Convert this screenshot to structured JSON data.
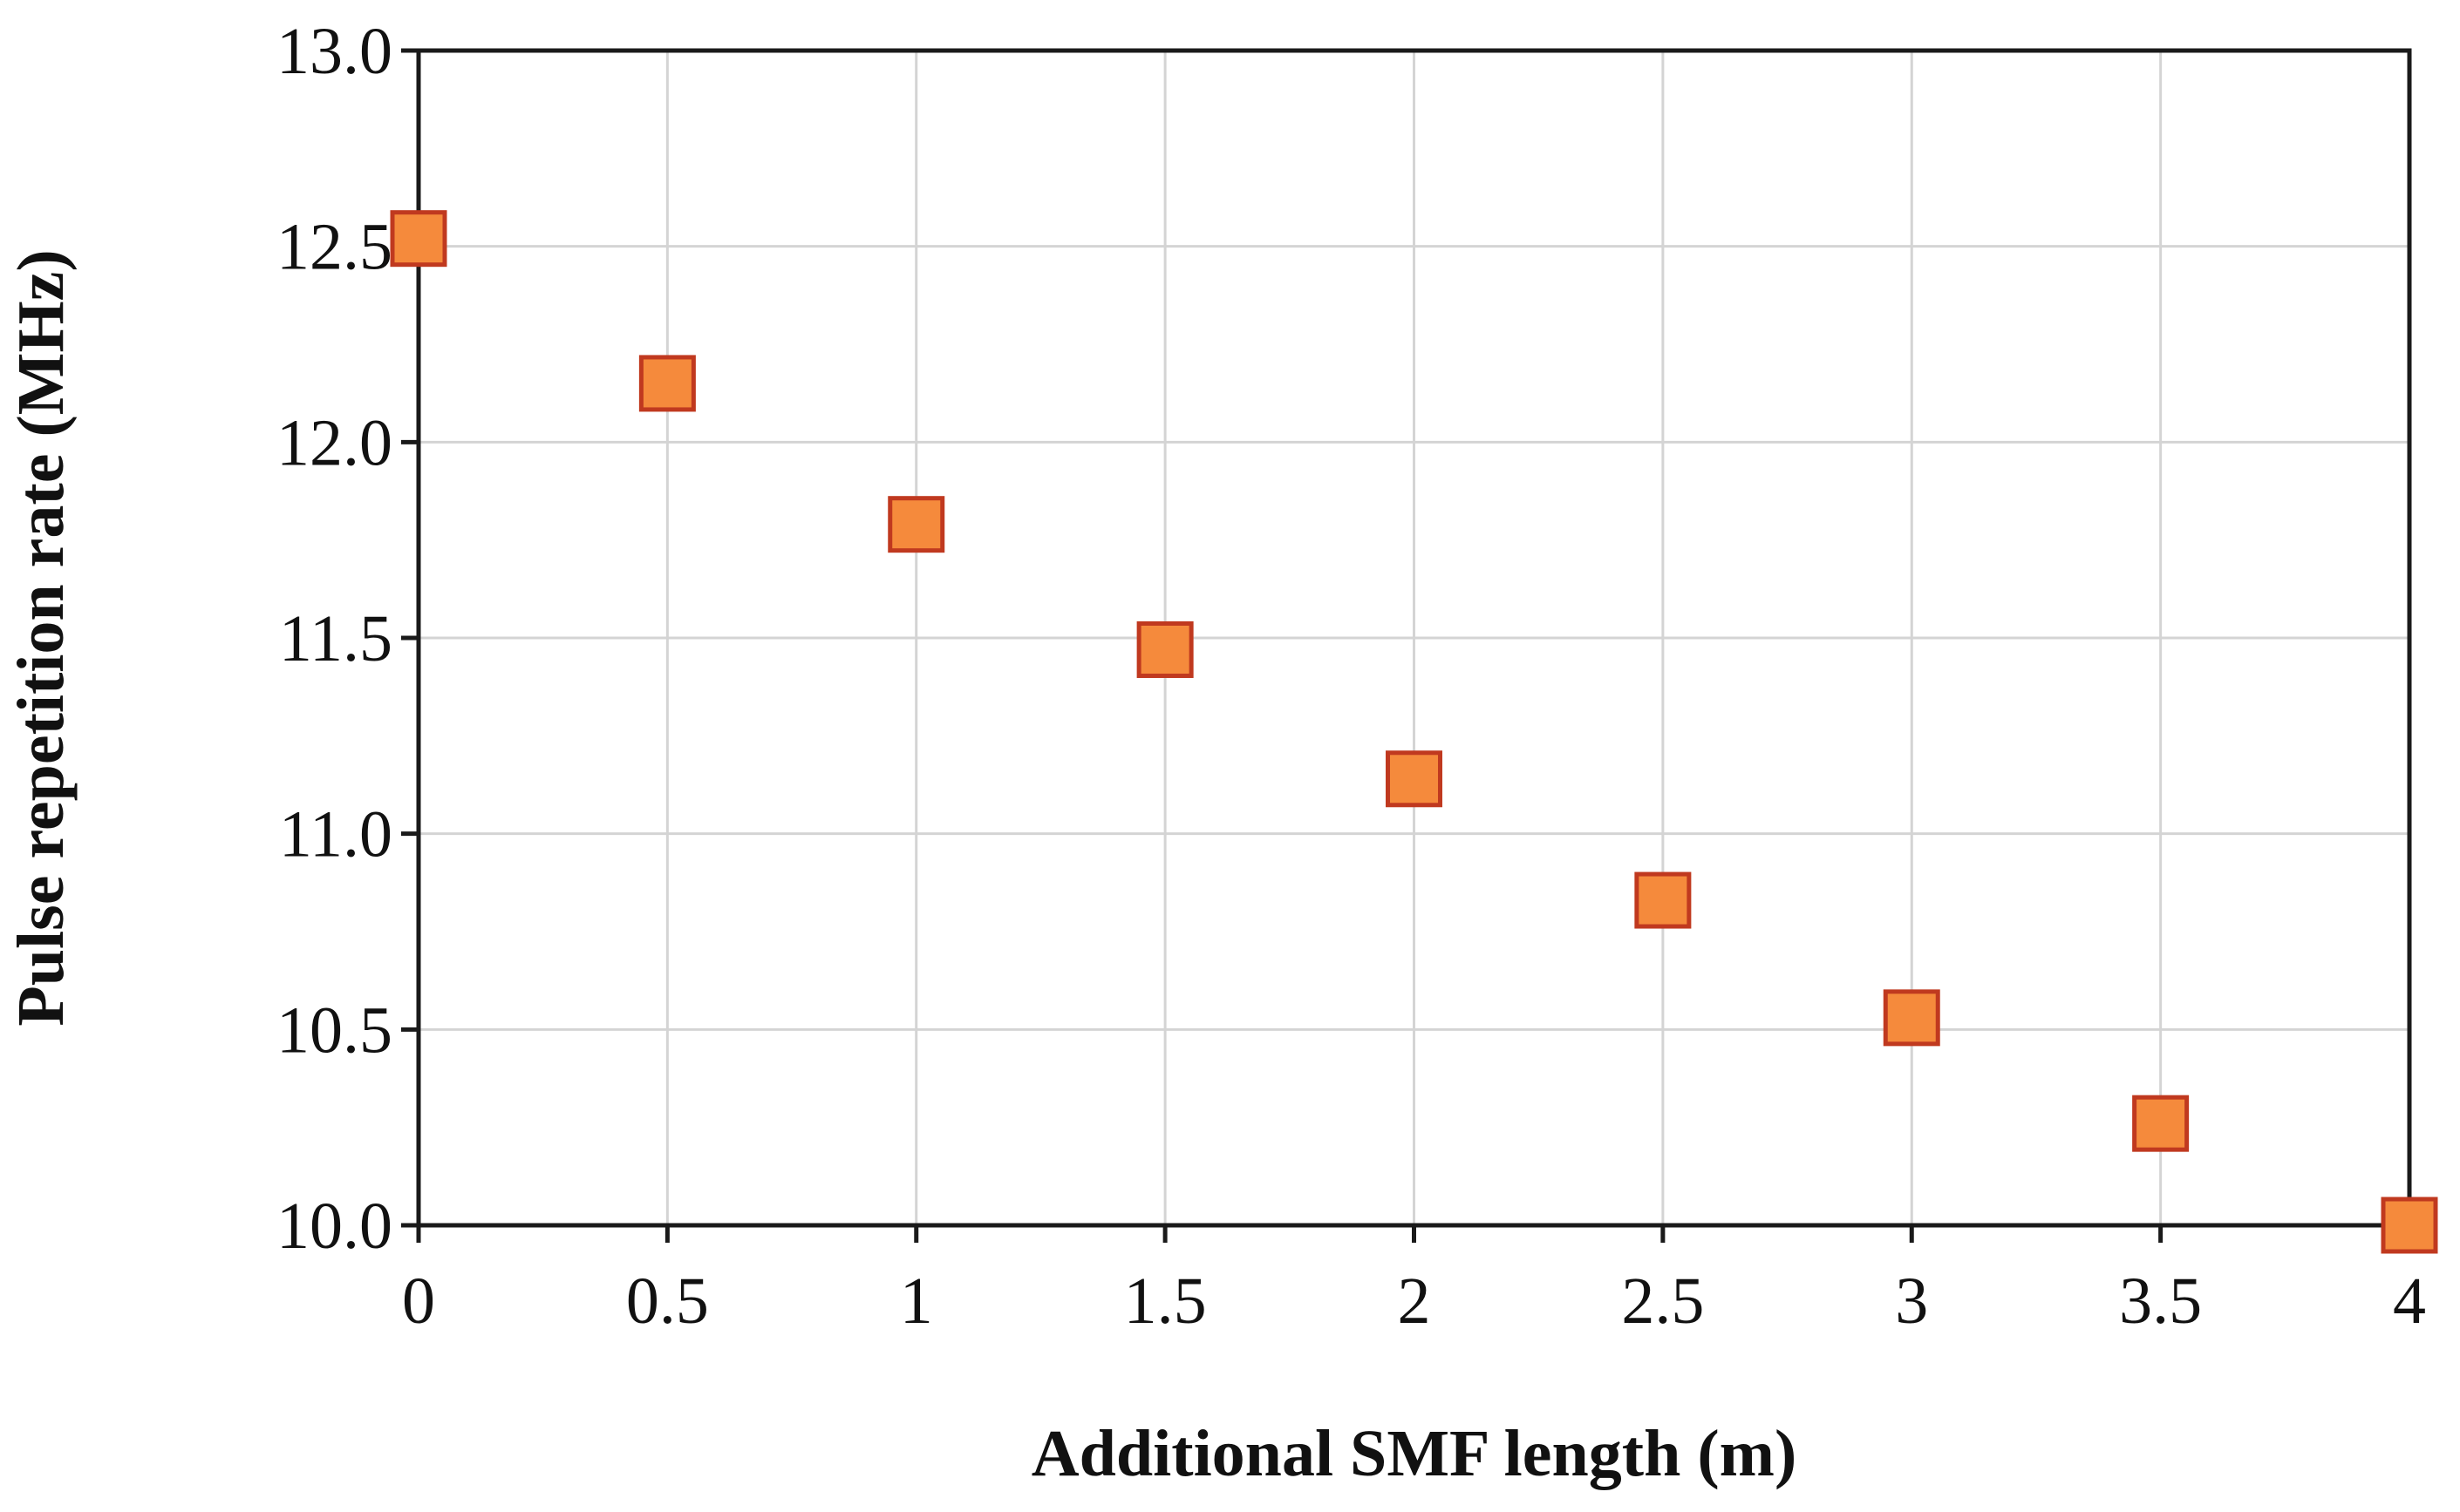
{
  "chart_data": {
    "type": "scatter",
    "title": "",
    "xlabel": "Additional SMF length (m)",
    "ylabel": "Pulse repetition rate (MHz)",
    "xlim": [
      0,
      4
    ],
    "ylim": [
      10.0,
      13.0
    ],
    "x_ticks": [
      0,
      0.5,
      1,
      1.5,
      2,
      2.5,
      3,
      3.5,
      4
    ],
    "x_tick_labels": [
      "0",
      "0.5",
      "1",
      "1.5",
      "2",
      "2.5",
      "3",
      "3.5",
      "4"
    ],
    "y_ticks": [
      10.0,
      10.5,
      11.0,
      11.5,
      12.0,
      12.5,
      13.0
    ],
    "y_tick_labels": [
      "10.0",
      "10.5",
      "11.0",
      "11.5",
      "12.0",
      "12.5",
      "13.0"
    ],
    "grid": true,
    "legend": "none",
    "series": [
      {
        "x": [
          0,
          0.5,
          1,
          1.5,
          2,
          2.5,
          3,
          3.5,
          4
        ],
        "y": [
          12.52,
          12.15,
          11.79,
          11.47,
          11.14,
          10.83,
          10.53,
          10.26,
          10.0
        ],
        "marker": "square",
        "color": "#F58A3C",
        "edge_color": "#C0391F"
      }
    ]
  }
}
